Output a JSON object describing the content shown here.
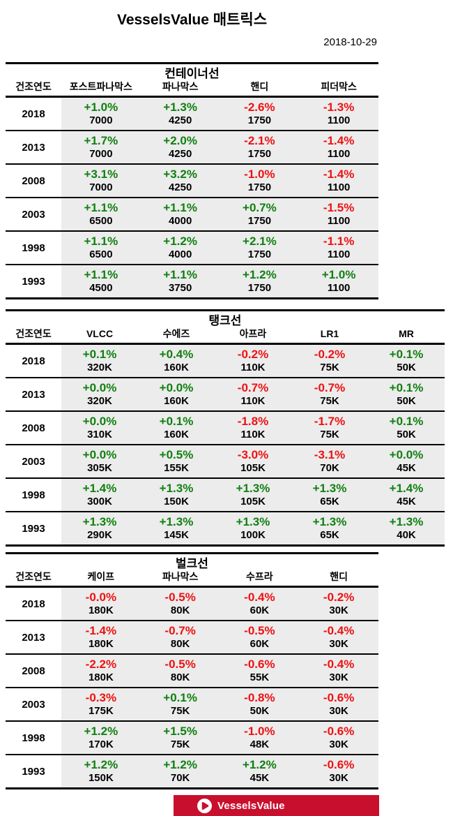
{
  "title": "VesselsValue 매트릭스",
  "date": "2018-10-29",
  "footer": {
    "brand": "VesselsValue"
  },
  "colors": {
    "positive": "#108010",
    "negative": "#EE1111",
    "cell_bg": "#ECECEC",
    "banner_bg": "#C8102E"
  },
  "chart_data": [
    {
      "type": "table",
      "title": "컨테이너선",
      "year_header": "건조연도",
      "columns": [
        "포스트파나막스",
        "파나막스",
        "핸디",
        "피더막스"
      ],
      "rows": [
        {
          "year": "2018",
          "cells": [
            [
              "+1.0%",
              "7000"
            ],
            [
              "+1.3%",
              "4250"
            ],
            [
              "-2.6%",
              "1750"
            ],
            [
              "-1.3%",
              "1100"
            ]
          ]
        },
        {
          "year": "2013",
          "cells": [
            [
              "+1.7%",
              "7000"
            ],
            [
              "+2.0%",
              "4250"
            ],
            [
              "-2.1%",
              "1750"
            ],
            [
              "-1.4%",
              "1100"
            ]
          ]
        },
        {
          "year": "2008",
          "cells": [
            [
              "+3.1%",
              "7000"
            ],
            [
              "+3.2%",
              "4250"
            ],
            [
              "-1.0%",
              "1750"
            ],
            [
              "-1.4%",
              "1100"
            ]
          ]
        },
        {
          "year": "2003",
          "cells": [
            [
              "+1.1%",
              "6500"
            ],
            [
              "+1.1%",
              "4000"
            ],
            [
              "+0.7%",
              "1750"
            ],
            [
              "-1.5%",
              "1100"
            ]
          ]
        },
        {
          "year": "1998",
          "cells": [
            [
              "+1.1%",
              "6500"
            ],
            [
              "+1.2%",
              "4000"
            ],
            [
              "+2.1%",
              "1750"
            ],
            [
              "-1.1%",
              "1100"
            ]
          ]
        },
        {
          "year": "1993",
          "cells": [
            [
              "+1.1%",
              "4500"
            ],
            [
              "+1.1%",
              "3750"
            ],
            [
              "+1.2%",
              "1750"
            ],
            [
              "+1.0%",
              "1100"
            ]
          ]
        }
      ]
    },
    {
      "type": "table",
      "title": "탱크선",
      "year_header": "건조연도",
      "columns": [
        "VLCC",
        "수에즈",
        "아프라",
        "LR1",
        "MR"
      ],
      "rows": [
        {
          "year": "2018",
          "cells": [
            [
              "+0.1%",
              "320K"
            ],
            [
              "+0.4%",
              "160K"
            ],
            [
              "-0.2%",
              "110K"
            ],
            [
              "-0.2%",
              "75K"
            ],
            [
              "+0.1%",
              "50K"
            ]
          ]
        },
        {
          "year": "2013",
          "cells": [
            [
              "+0.0%",
              "320K"
            ],
            [
              "+0.0%",
              "160K"
            ],
            [
              "-0.7%",
              "110K"
            ],
            [
              "-0.7%",
              "75K"
            ],
            [
              "+0.1%",
              "50K"
            ]
          ]
        },
        {
          "year": "2008",
          "cells": [
            [
              "+0.0%",
              "310K"
            ],
            [
              "+0.1%",
              "160K"
            ],
            [
              "-1.8%",
              "110K"
            ],
            [
              "-1.7%",
              "75K"
            ],
            [
              "+0.1%",
              "50K"
            ]
          ]
        },
        {
          "year": "2003",
          "cells": [
            [
              "+0.0%",
              "305K"
            ],
            [
              "+0.5%",
              "155K"
            ],
            [
              "-3.0%",
              "105K"
            ],
            [
              "-3.1%",
              "70K"
            ],
            [
              "+0.0%",
              "45K"
            ]
          ]
        },
        {
          "year": "1998",
          "cells": [
            [
              "+1.4%",
              "300K"
            ],
            [
              "+1.3%",
              "150K"
            ],
            [
              "+1.3%",
              "105K"
            ],
            [
              "+1.3%",
              "65K"
            ],
            [
              "+1.4%",
              "45K"
            ]
          ]
        },
        {
          "year": "1993",
          "cells": [
            [
              "+1.3%",
              "290K"
            ],
            [
              "+1.3%",
              "145K"
            ],
            [
              "+1.3%",
              "100K"
            ],
            [
              "+1.3%",
              "65K"
            ],
            [
              "+1.3%",
              "40K"
            ]
          ]
        }
      ]
    },
    {
      "type": "table",
      "title": "벌크선",
      "year_header": "건조연도",
      "columns": [
        "케이프",
        "파나막스",
        "수프라",
        "핸디"
      ],
      "rows": [
        {
          "year": "2018",
          "cells": [
            [
              "-0.0%",
              "180K"
            ],
            [
              "-0.5%",
              "80K"
            ],
            [
              "-0.4%",
              "60K"
            ],
            [
              "-0.2%",
              "30K"
            ]
          ]
        },
        {
          "year": "2013",
          "cells": [
            [
              "-1.4%",
              "180K"
            ],
            [
              "-0.7%",
              "80K"
            ],
            [
              "-0.5%",
              "60K"
            ],
            [
              "-0.4%",
              "30K"
            ]
          ]
        },
        {
          "year": "2008",
          "cells": [
            [
              "-2.2%",
              "180K"
            ],
            [
              "-0.5%",
              "80K"
            ],
            [
              "-0.6%",
              "55K"
            ],
            [
              "-0.4%",
              "30K"
            ]
          ]
        },
        {
          "year": "2003",
          "cells": [
            [
              "-0.3%",
              "175K"
            ],
            [
              "+0.1%",
              "75K"
            ],
            [
              "-0.8%",
              "50K"
            ],
            [
              "-0.6%",
              "30K"
            ]
          ]
        },
        {
          "year": "1998",
          "cells": [
            [
              "+1.2%",
              "170K"
            ],
            [
              "+1.5%",
              "75K"
            ],
            [
              "-1.0%",
              "48K"
            ],
            [
              "-0.6%",
              "30K"
            ]
          ]
        },
        {
          "year": "1993",
          "cells": [
            [
              "+1.2%",
              "150K"
            ],
            [
              "+1.2%",
              "70K"
            ],
            [
              "+1.2%",
              "45K"
            ],
            [
              "-0.6%",
              "30K"
            ]
          ]
        }
      ]
    }
  ]
}
